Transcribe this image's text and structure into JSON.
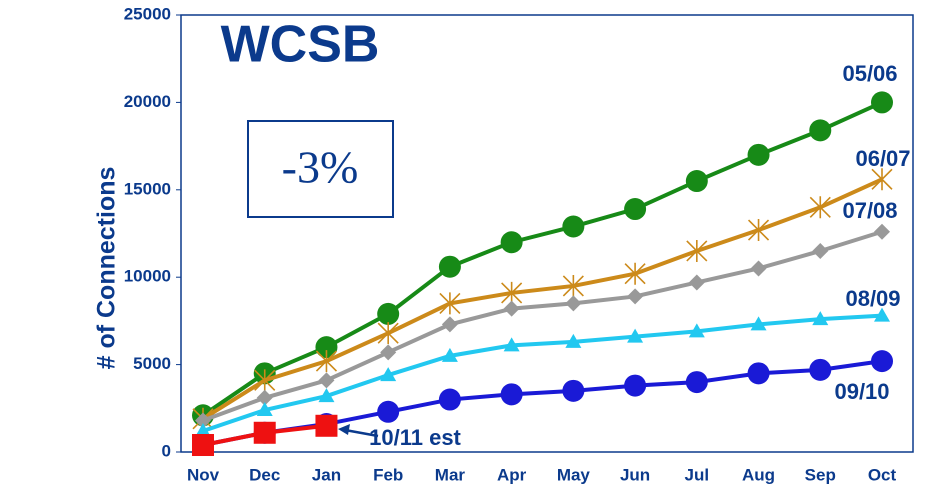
{
  "chart_data": {
    "type": "line",
    "title": "WCSB",
    "ylabel": "# of Connections",
    "annotation": "-3%",
    "categories": [
      "Nov",
      "Dec",
      "Jan",
      "Feb",
      "Mar",
      "Apr",
      "May",
      "Jun",
      "Jul",
      "Aug",
      "Sep",
      "Oct"
    ],
    "ylim": [
      0,
      25000
    ],
    "yticks": [
      0,
      5000,
      10000,
      15000,
      20000,
      25000
    ],
    "series": [
      {
        "name": "05/06",
        "color": "#178a17",
        "marker": "circle",
        "values": [
          2100,
          4500,
          6000,
          7900,
          10600,
          12000,
          12900,
          13900,
          15500,
          17000,
          18400,
          20000
        ]
      },
      {
        "name": "06/07",
        "color": "#cc8a1a",
        "marker": "star",
        "values": [
          1900,
          4100,
          5200,
          6800,
          8500,
          9100,
          9500,
          10200,
          11500,
          12700,
          14000,
          15600
        ]
      },
      {
        "name": "07/08",
        "color": "#999999",
        "marker": "diamond",
        "values": [
          1800,
          3100,
          4100,
          5700,
          7300,
          8200,
          8500,
          8900,
          9700,
          10500,
          11500,
          12600
        ]
      },
      {
        "name": "08/09",
        "color": "#22c8f0",
        "marker": "triangle",
        "values": [
          1200,
          2400,
          3200,
          4400,
          5500,
          6100,
          6300,
          6600,
          6900,
          7300,
          7600,
          7800
        ]
      },
      {
        "name": "09/10",
        "color": "#1a1ad6",
        "marker": "circle",
        "values": [
          400,
          1100,
          1600,
          2300,
          3000,
          3300,
          3500,
          3800,
          4000,
          4500,
          4700,
          5200
        ]
      },
      {
        "name": "10/11 est",
        "color": "#ee1111",
        "marker": "square",
        "values": [
          400,
          1100,
          1500,
          null,
          null,
          null,
          null,
          null,
          null,
          null,
          null,
          null
        ]
      }
    ]
  }
}
